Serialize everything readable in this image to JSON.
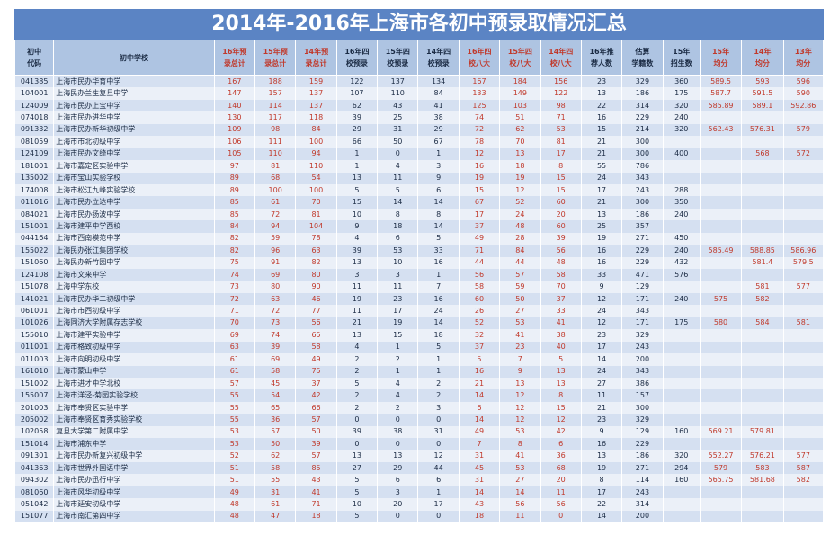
{
  "title": "2014年-2016年上海市各初中预录取情况汇总",
  "headers": [
    {
      "label": "初中\n代码",
      "red": false
    },
    {
      "label": "初中学校",
      "red": false
    },
    {
      "label": "16年预\n录总计",
      "red": true
    },
    {
      "label": "15年预\n录总计",
      "red": true
    },
    {
      "label": "14年预\n录总计",
      "red": true
    },
    {
      "label": "16年四\n校预录",
      "red": false
    },
    {
      "label": "15年四\n校预录",
      "red": false
    },
    {
      "label": "14年四\n校预录",
      "red": false
    },
    {
      "label": "16年四\n校八大",
      "red": true
    },
    {
      "label": "15年四\n校八大",
      "red": true
    },
    {
      "label": "14年四\n校八大",
      "red": true
    },
    {
      "label": "16年推\n荐人数",
      "red": false
    },
    {
      "label": "估算\n学籍数",
      "red": false
    },
    {
      "label": "15年\n招生数",
      "red": false
    },
    {
      "label": "15年\n均分",
      "red": true
    },
    {
      "label": "14年\n均分",
      "red": true
    },
    {
      "label": "13年\n均分",
      "red": true
    }
  ],
  "rows": [
    [
      "041385",
      "上海市民办华育中学",
      "167",
      "188",
      "159",
      "122",
      "137",
      "134",
      "167",
      "184",
      "156",
      "23",
      "329",
      "360",
      "589.5",
      "593",
      "596"
    ],
    [
      "104001",
      "上海民办兰生复旦中学",
      "147",
      "157",
      "137",
      "107",
      "110",
      "84",
      "133",
      "149",
      "122",
      "13",
      "186",
      "175",
      "587.7",
      "591.5",
      "590"
    ],
    [
      "124009",
      "上海市民办上宝中学",
      "140",
      "114",
      "137",
      "62",
      "43",
      "41",
      "125",
      "103",
      "98",
      "22",
      "314",
      "320",
      "585.89",
      "589.1",
      "592.86"
    ],
    [
      "074018",
      "上海市民办进华中学",
      "130",
      "117",
      "118",
      "39",
      "25",
      "38",
      "74",
      "51",
      "71",
      "16",
      "229",
      "240",
      "",
      "",
      ""
    ],
    [
      "091332",
      "上海市民办新华初级中学",
      "109",
      "98",
      "84",
      "29",
      "31",
      "29",
      "72",
      "62",
      "53",
      "15",
      "214",
      "320",
      "562.43",
      "576.31",
      "579"
    ],
    [
      "081059",
      "上海市市北初级中学",
      "106",
      "111",
      "100",
      "66",
      "50",
      "67",
      "78",
      "70",
      "81",
      "21",
      "300",
      "",
      "",
      "",
      ""
    ],
    [
      "124109",
      "上海市民办文绮中学",
      "105",
      "110",
      "94",
      "1",
      "0",
      "1",
      "12",
      "13",
      "17",
      "21",
      "300",
      "400",
      "",
      "568",
      "572"
    ],
    [
      "181001",
      "上海市嘉定区实验中学",
      "97",
      "81",
      "110",
      "1",
      "4",
      "3",
      "16",
      "18",
      "8",
      "55",
      "786",
      "",
      "",
      "",
      ""
    ],
    [
      "135002",
      "上海市宝山实验学校",
      "89",
      "68",
      "54",
      "13",
      "11",
      "9",
      "19",
      "19",
      "15",
      "24",
      "343",
      "",
      "",
      "",
      ""
    ],
    [
      "174008",
      "上海市松江九峰实验学校",
      "89",
      "100",
      "100",
      "5",
      "5",
      "6",
      "15",
      "12",
      "15",
      "17",
      "243",
      "288",
      "",
      "",
      ""
    ],
    [
      "011016",
      "上海市民办立达中学",
      "85",
      "61",
      "70",
      "15",
      "14",
      "14",
      "67",
      "52",
      "60",
      "21",
      "300",
      "350",
      "",
      "",
      ""
    ],
    [
      "084021",
      "上海市民办扬波中学",
      "85",
      "72",
      "81",
      "10",
      "8",
      "8",
      "17",
      "24",
      "20",
      "13",
      "186",
      "240",
      "",
      "",
      ""
    ],
    [
      "151001",
      "上海市建平中学西校",
      "84",
      "94",
      "104",
      "9",
      "18",
      "14",
      "37",
      "48",
      "60",
      "25",
      "357",
      "",
      "",
      "",
      ""
    ],
    [
      "044164",
      "上海市西南模范中学",
      "82",
      "59",
      "78",
      "4",
      "6",
      "5",
      "49",
      "28",
      "39",
      "19",
      "271",
      "450",
      "",
      "",
      ""
    ],
    [
      "155022",
      "上海民办张江集团学校",
      "82",
      "96",
      "63",
      "39",
      "53",
      "33",
      "71",
      "84",
      "56",
      "16",
      "229",
      "240",
      "585.49",
      "588.85",
      "586.96"
    ],
    [
      "151060",
      "上海民办新竹园中学",
      "75",
      "91",
      "82",
      "13",
      "10",
      "16",
      "44",
      "44",
      "48",
      "16",
      "229",
      "432",
      "",
      "581.4",
      "579.5"
    ],
    [
      "124108",
      "上海市文来中学",
      "74",
      "69",
      "80",
      "3",
      "3",
      "1",
      "56",
      "57",
      "58",
      "33",
      "471",
      "576",
      "",
      "",
      ""
    ],
    [
      "151078",
      "上海中学东校",
      "73",
      "80",
      "90",
      "11",
      "11",
      "7",
      "58",
      "59",
      "70",
      "9",
      "129",
      "",
      "",
      "581",
      "577"
    ],
    [
      "141021",
      "上海市民办华二初级中学",
      "72",
      "63",
      "46",
      "19",
      "23",
      "16",
      "60",
      "50",
      "37",
      "12",
      "171",
      "240",
      "575",
      "582",
      ""
    ],
    [
      "061001",
      "上海市市西初级中学",
      "71",
      "72",
      "77",
      "11",
      "17",
      "24",
      "26",
      "27",
      "33",
      "24",
      "343",
      "",
      "",
      "",
      ""
    ],
    [
      "101026",
      "上海同济大学附属存志学校",
      "70",
      "73",
      "56",
      "21",
      "19",
      "14",
      "52",
      "53",
      "41",
      "12",
      "171",
      "175",
      "580",
      "584",
      "581"
    ],
    [
      "155010",
      "上海市建平实验中学",
      "69",
      "74",
      "65",
      "13",
      "15",
      "18",
      "32",
      "41",
      "38",
      "23",
      "329",
      "",
      "",
      "",
      ""
    ],
    [
      "011001",
      "上海市格致初级中学",
      "63",
      "39",
      "58",
      "4",
      "1",
      "5",
      "37",
      "23",
      "40",
      "17",
      "243",
      "",
      "",
      "",
      ""
    ],
    [
      "011003",
      "上海市向明初级中学",
      "61",
      "69",
      "49",
      "2",
      "2",
      "1",
      "5",
      "7",
      "5",
      "14",
      "200",
      "",
      "",
      "",
      ""
    ],
    [
      "161010",
      "上海市蒙山中学",
      "61",
      "58",
      "75",
      "2",
      "1",
      "1",
      "16",
      "9",
      "13",
      "24",
      "343",
      "",
      "",
      "",
      ""
    ],
    [
      "151002",
      "上海市进才中学北校",
      "57",
      "45",
      "37",
      "5",
      "4",
      "2",
      "21",
      "13",
      "13",
      "27",
      "386",
      "",
      "",
      "",
      ""
    ],
    [
      "155007",
      "上海市洋泾-菊园实验学校",
      "55",
      "54",
      "42",
      "2",
      "4",
      "2",
      "14",
      "12",
      "8",
      "11",
      "157",
      "",
      "",
      "",
      ""
    ],
    [
      "201003",
      "上海市奉贤区实验中学",
      "55",
      "65",
      "66",
      "2",
      "2",
      "3",
      "6",
      "12",
      "15",
      "21",
      "300",
      "",
      "",
      "",
      ""
    ],
    [
      "205002",
      "上海市奉贤区育秀实验学校",
      "55",
      "36",
      "57",
      "0",
      "0",
      "0",
      "14",
      "12",
      "12",
      "23",
      "329",
      "",
      "",
      "",
      ""
    ],
    [
      "102058",
      "复旦大学第二附属中学",
      "53",
      "57",
      "50",
      "39",
      "38",
      "31",
      "49",
      "53",
      "42",
      "9",
      "129",
      "160",
      "569.21",
      "579.81",
      ""
    ],
    [
      "151014",
      "上海市浦东中学",
      "53",
      "50",
      "39",
      "0",
      "0",
      "0",
      "7",
      "8",
      "6",
      "16",
      "229",
      "",
      "",
      "",
      ""
    ],
    [
      "091301",
      "上海市民办新复兴初级中学",
      "52",
      "62",
      "57",
      "13",
      "13",
      "12",
      "31",
      "41",
      "36",
      "13",
      "186",
      "320",
      "552.27",
      "576.21",
      "577"
    ],
    [
      "041363",
      "上海市世界外国语中学",
      "51",
      "58",
      "85",
      "27",
      "29",
      "44",
      "45",
      "53",
      "68",
      "19",
      "271",
      "294",
      "579",
      "583",
      "587"
    ],
    [
      "094302",
      "上海市民办迅行中学",
      "51",
      "55",
      "43",
      "5",
      "6",
      "6",
      "31",
      "27",
      "20",
      "8",
      "114",
      "160",
      "565.75",
      "581.68",
      "582"
    ],
    [
      "081060",
      "上海市风华初级中学",
      "49",
      "31",
      "41",
      "5",
      "3",
      "1",
      "14",
      "14",
      "11",
      "17",
      "243",
      "",
      "",
      "",
      ""
    ],
    [
      "051042",
      "上海市延安初级中学",
      "48",
      "61",
      "71",
      "10",
      "20",
      "17",
      "43",
      "56",
      "56",
      "22",
      "314",
      "",
      "",
      "",
      ""
    ],
    [
      "151077",
      "上海市南汇第四中学",
      "48",
      "47",
      "18",
      "5",
      "0",
      "0",
      "18",
      "11",
      "0",
      "14",
      "200",
      "",
      "",
      "",
      ""
    ]
  ]
}
